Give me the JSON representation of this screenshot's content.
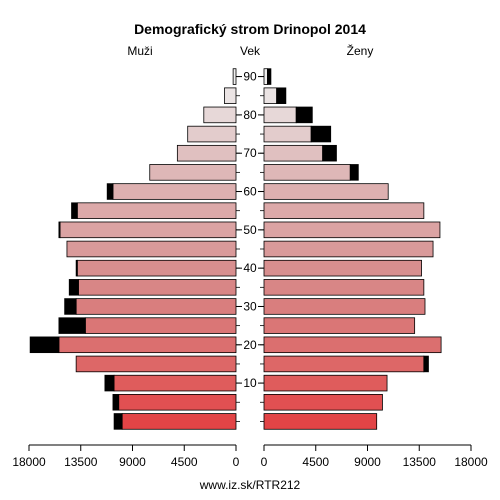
{
  "chart_data": {
    "type": "bar",
    "title": "Demografický strom Drinopol 2014",
    "left_label": "Muži",
    "center_label": "Vek",
    "right_label": "Ženy",
    "footer": "www.iz.sk/RTR212",
    "age_groups": [
      "0-4",
      "5-9",
      "10-14",
      "15-19",
      "20-24",
      "25-29",
      "30-34",
      "35-39",
      "40-44",
      "45-49",
      "50-54",
      "55-59",
      "60-64",
      "65-69",
      "70-74",
      "75-79",
      "80-84",
      "85-89",
      "90+"
    ],
    "age_tick_labels": [
      "10",
      "20",
      "30",
      "40",
      "50",
      "60",
      "70",
      "80",
      "90"
    ],
    "age_tick_groups": [
      2,
      4,
      6,
      8,
      10,
      12,
      14,
      16,
      18
    ],
    "x_tick_values": [
      18000,
      13500,
      9000,
      4500,
      0
    ],
    "x_tick_labels_left": [
      "18000",
      "13500",
      "9000",
      "4500",
      "0"
    ],
    "x_tick_labels_right": [
      "0",
      "4500",
      "9000",
      "13500",
      "18000"
    ],
    "xlim": [
      0,
      18000
    ],
    "series": [
      {
        "name": "Muži",
        "values": [
          9900,
          10200,
          10600,
          13900,
          15400,
          13100,
          13900,
          13700,
          13800,
          14700,
          15300,
          13800,
          10700,
          7500,
          5100,
          4200,
          2800,
          1000,
          250
        ]
      },
      {
        "name": "Muži excess",
        "values": [
          700,
          500,
          800,
          0,
          2500,
          2300,
          1000,
          800,
          100,
          0,
          100,
          500,
          500,
          0,
          0,
          0,
          0,
          0,
          0
        ]
      },
      {
        "name": "Ženy",
        "values": [
          9800,
          10300,
          10700,
          13900,
          15400,
          13100,
          14000,
          13900,
          13700,
          14700,
          15300,
          13900,
          10800,
          7500,
          5100,
          4100,
          2800,
          1100,
          300
        ]
      },
      {
        "name": "Ženy excess",
        "values": [
          0,
          0,
          0,
          400,
          0,
          0,
          0,
          0,
          0,
          0,
          0,
          0,
          0,
          700,
          1200,
          1700,
          1400,
          800,
          300
        ]
      }
    ],
    "colors": {
      "bar_palette": [
        "#e24446",
        "#e15052",
        "#df5c5c",
        "#dd6767",
        "#db6f6f",
        "#da7676",
        "#d97e7e",
        "#d88686",
        "#d88f8f",
        "#d99a9a",
        "#dba3a3",
        "#dca9a9",
        "#ddb0b0",
        "#deb7b7",
        "#e0c0c0",
        "#e3cccc",
        "#e7d8d8",
        "#ebe4e4",
        "#f0efef"
      ],
      "excess": "#000000"
    },
    "grid": false
  }
}
